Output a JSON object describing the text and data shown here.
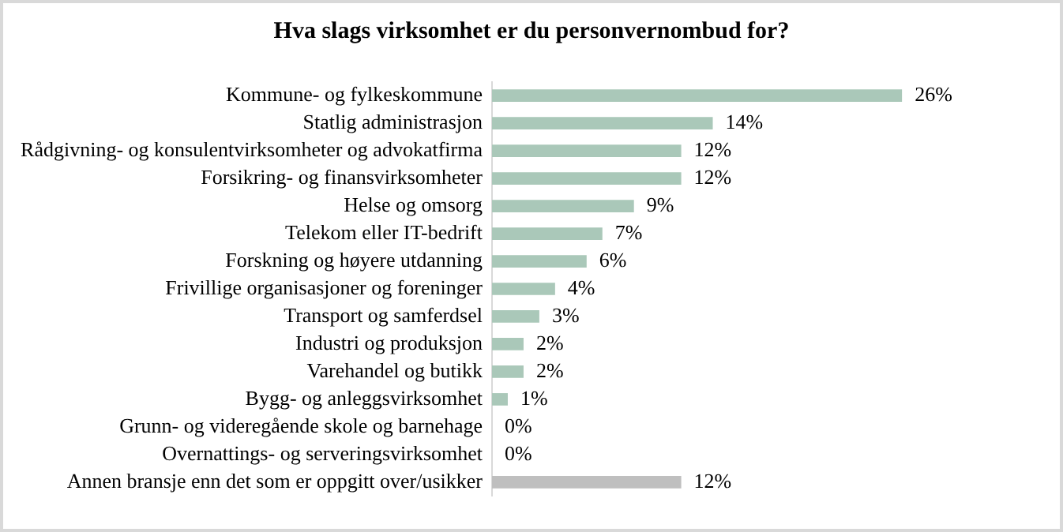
{
  "chart_data": {
    "type": "bar",
    "orientation": "horizontal",
    "title": "Hva slags virksomhet er du personvernombud for?",
    "categories": [
      "Kommune- og fylkeskommune",
      "Statlig administrasjon",
      "Rådgivning- og konsulentvirksomheter og advokatfirma",
      "Forsikring- og finansvirksomheter",
      "Helse og omsorg",
      "Telekom eller IT-bedrift",
      "Forskning og høyere utdanning",
      "Frivillige organisasjoner og foreninger",
      "Transport og samferdsel",
      "Industri og produksjon",
      "Varehandel og butikk",
      "Bygg- og anleggsvirksomhet",
      "Grunn- og videregående skole og barnehage",
      "Overnattings- og serveringsvirksomhet",
      "Annen bransje enn det som er oppgitt over/usikker"
    ],
    "values": [
      26,
      14,
      12,
      12,
      9,
      7,
      6,
      4,
      3,
      2,
      2,
      1,
      0,
      0,
      12
    ],
    "value_labels": [
      "26%",
      "14%",
      "12%",
      "12%",
      "9%",
      "7%",
      "6%",
      "4%",
      "3%",
      "2%",
      "2%",
      "1%",
      "0%",
      "0%",
      "12%"
    ],
    "colors": [
      "#aac8b9",
      "#aac8b9",
      "#aac8b9",
      "#aac8b9",
      "#aac8b9",
      "#aac8b9",
      "#aac8b9",
      "#aac8b9",
      "#aac8b9",
      "#aac8b9",
      "#aac8b9",
      "#aac8b9",
      "#aac8b9",
      "#aac8b9",
      "#bfbfbf"
    ],
    "tick_labels": "y",
    "legend": false
  }
}
